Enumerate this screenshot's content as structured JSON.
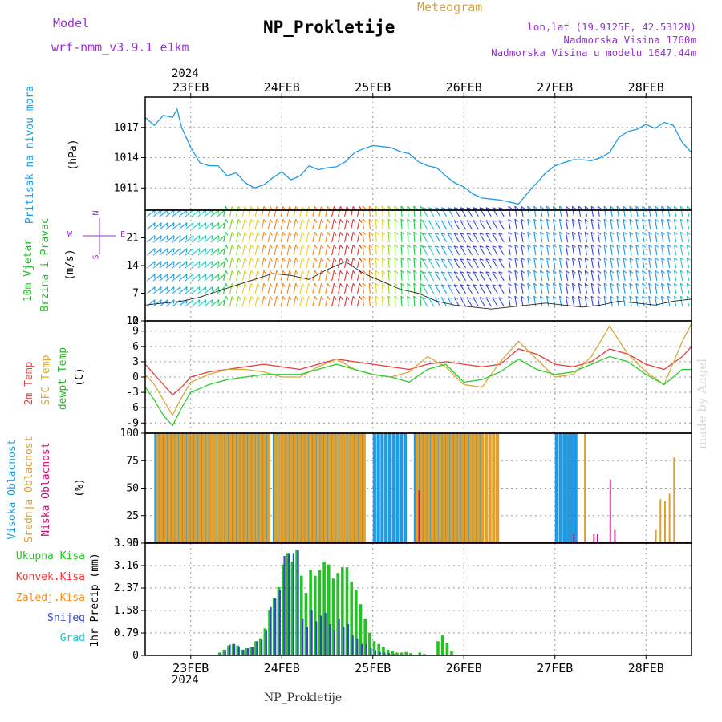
{
  "header": {
    "model_label": "Model",
    "model_name": "wrf-nmm_v3.9.1 e1km",
    "meteogram_label": "Meteogram",
    "title": "NP_Prokletije",
    "lonlat": "lon,lat (19.9125E, 42.5312N)",
    "elevation": "Nadmorska Visina 1760m",
    "model_elevation": "Nadmorska Visina u modelu 1647.44m",
    "watermark": "made by Angel",
    "station_footer": "NP_Prokletije"
  },
  "colors": {
    "pressure": "#1e9be6",
    "temp2m": "#e8403c",
    "sfc": "#d8a93a",
    "dewpt": "#2ecc2e",
    "high_cloud": "#1e9be6",
    "mid_cloud": "#e0a030",
    "low_cloud": "#c8137a",
    "precip_total": "#22c322",
    "precip_conv": "#ff3333",
    "precip_frozen": "#ff8c1a",
    "snow": "#3344cc",
    "graupel": "#20c0c0",
    "wind_title": "#22bb22",
    "legend_purple": "#9b30d9"
  },
  "chart_data": [
    {
      "type": "line",
      "title": "Pritisak na nivou mora",
      "ylabel": "(hPa)",
      "x_top_year": "2024",
      "x_tick_labels": [
        "23FEB",
        "24FEB",
        "25FEB",
        "26FEB",
        "27FEB",
        "28FEB"
      ],
      "x_range_days": [
        22.5,
        28.5
      ],
      "ylim": [
        1008.8,
        1020.0
      ],
      "yticks": [
        1011,
        1014,
        1017
      ],
      "grid": true,
      "series": [
        {
          "name": "Pritisak na nivou mora",
          "x": [
            22.5,
            22.6,
            22.7,
            22.8,
            22.85,
            22.9,
            23.0,
            23.1,
            23.2,
            23.3,
            23.4,
            23.5,
            23.6,
            23.7,
            23.8,
            23.9,
            24.0,
            24.1,
            24.2,
            24.3,
            24.4,
            24.5,
            24.6,
            24.7,
            24.8,
            24.9,
            25.0,
            25.1,
            25.2,
            25.3,
            25.4,
            25.5,
            25.6,
            25.7,
            25.8,
            25.9,
            26.0,
            26.1,
            26.2,
            26.3,
            26.4,
            26.5,
            26.6,
            26.7,
            26.8,
            26.9,
            27.0,
            27.1,
            27.2,
            27.3,
            27.4,
            27.5,
            27.6,
            27.7,
            27.8,
            27.9,
            28.0,
            28.1,
            28.2,
            28.3,
            28.4,
            28.5
          ],
          "values": [
            1018.0,
            1017.2,
            1018.2,
            1018.0,
            1018.8,
            1017.0,
            1015.0,
            1013.5,
            1013.2,
            1013.2,
            1012.2,
            1012.5,
            1011.5,
            1011.0,
            1011.3,
            1012.0,
            1012.6,
            1011.8,
            1012.2,
            1013.2,
            1012.8,
            1013.0,
            1013.1,
            1013.6,
            1014.5,
            1014.9,
            1015.2,
            1015.1,
            1015.0,
            1014.6,
            1014.4,
            1013.6,
            1013.2,
            1013.0,
            1012.2,
            1011.5,
            1011.1,
            1010.4,
            1010.0,
            1009.9,
            1009.8,
            1009.6,
            1009.4,
            1010.5,
            1011.5,
            1012.5,
            1013.2,
            1013.5,
            1013.8,
            1013.8,
            1013.7,
            1014.0,
            1014.5,
            1016.0,
            1016.6,
            1016.8,
            1017.3,
            1016.9,
            1017.5,
            1017.2,
            1015.5,
            1014.5
          ]
        }
      ]
    },
    {
      "type": "line",
      "title": "10m Vjetar Brzina i Pravac",
      "ylabel": "(m/s)",
      "compass": {
        "north": "N",
        "west": "W",
        "east": "E",
        "south": "S"
      },
      "ylim": [
        0,
        28
      ],
      "yticks": [
        0,
        7,
        14,
        21
      ],
      "yticks_extra": [
        "12"
      ],
      "grid": true,
      "series": [
        {
          "name": "brzina",
          "x": [
            22.5,
            22.7,
            22.9,
            23.1,
            23.3,
            23.5,
            23.7,
            23.9,
            24.1,
            24.3,
            24.5,
            24.7,
            24.9,
            25.1,
            25.3,
            25.5,
            25.7,
            25.9,
            26.1,
            26.3,
            26.5,
            26.7,
            26.9,
            27.1,
            27.3,
            27.5,
            27.7,
            27.9,
            28.1,
            28.3,
            28.5
          ],
          "values": [
            4.0,
            4.5,
            5.0,
            6.0,
            7.5,
            9.0,
            10.5,
            12.0,
            11.5,
            10.5,
            13.0,
            15.0,
            12.0,
            10.0,
            8.0,
            7.0,
            5.0,
            4.0,
            3.5,
            3.0,
            3.5,
            4.0,
            4.5,
            4.0,
            3.5,
            4.0,
            5.0,
            4.5,
            4.0,
            5.0,
            5.5
          ]
        }
      ]
    },
    {
      "type": "line",
      "title": "2m Temp / SFC Temp / dewpt Temp",
      "ylabel": "(C)",
      "ylim": [
        -11,
        11
      ],
      "yticks": [
        -9,
        -6,
        -3,
        0,
        3,
        6,
        9
      ],
      "grid": true,
      "series": [
        {
          "name": "2m Temp",
          "x": [
            22.5,
            22.6,
            22.7,
            22.8,
            22.9,
            23.0,
            23.2,
            23.4,
            23.6,
            23.8,
            24.0,
            24.2,
            24.4,
            24.6,
            24.8,
            25.0,
            25.2,
            25.4,
            25.6,
            25.8,
            26.0,
            26.2,
            26.4,
            26.6,
            26.8,
            27.0,
            27.2,
            27.4,
            27.6,
            27.8,
            28.0,
            28.2,
            28.4,
            28.5
          ],
          "values": [
            2.5,
            0.5,
            -1.5,
            -3.5,
            -2.0,
            0.0,
            1.0,
            1.5,
            2.0,
            2.5,
            2.0,
            1.5,
            2.5,
            3.5,
            3.0,
            2.5,
            2.0,
            1.5,
            2.5,
            3.0,
            2.5,
            2.0,
            2.5,
            5.5,
            4.5,
            2.5,
            2.0,
            3.0,
            5.5,
            4.5,
            2.5,
            1.5,
            4.0,
            6.0
          ]
        },
        {
          "name": "SFC Temp",
          "x": [
            22.5,
            22.6,
            22.7,
            22.8,
            22.9,
            23.0,
            23.2,
            23.4,
            23.6,
            23.8,
            24.0,
            24.2,
            24.4,
            24.6,
            24.8,
            25.0,
            25.2,
            25.4,
            25.6,
            25.8,
            26.0,
            26.2,
            26.4,
            26.6,
            26.8,
            27.0,
            27.2,
            27.4,
            27.6,
            27.8,
            28.0,
            28.2,
            28.4,
            28.5
          ],
          "values": [
            0.5,
            -1.5,
            -4.5,
            -7.5,
            -4.0,
            -1.0,
            0.5,
            1.5,
            1.5,
            1.0,
            0.0,
            0.0,
            2.0,
            3.5,
            1.5,
            0.5,
            0.0,
            1.0,
            4.0,
            2.0,
            -1.5,
            -2.0,
            3.0,
            7.0,
            3.5,
            0.0,
            0.5,
            4.0,
            10.0,
            4.5,
            1.0,
            -1.5,
            7.0,
            10.5
          ]
        },
        {
          "name": "dewpt Temp",
          "x": [
            22.5,
            22.6,
            22.7,
            22.8,
            22.9,
            23.0,
            23.2,
            23.4,
            23.6,
            23.8,
            24.0,
            24.2,
            24.4,
            24.6,
            24.8,
            25.0,
            25.2,
            25.4,
            25.6,
            25.8,
            26.0,
            26.2,
            26.4,
            26.6,
            26.8,
            27.0,
            27.2,
            27.4,
            27.6,
            27.8,
            28.0,
            28.2,
            28.4,
            28.5
          ],
          "values": [
            -2.0,
            -4.5,
            -7.5,
            -9.5,
            -6.0,
            -3.0,
            -1.5,
            -0.5,
            0.0,
            0.5,
            0.5,
            0.5,
            1.5,
            2.5,
            1.5,
            0.5,
            0.0,
            -1.0,
            1.5,
            2.5,
            -1.0,
            -0.5,
            1.0,
            3.5,
            1.5,
            0.5,
            1.0,
            2.5,
            4.0,
            3.0,
            0.5,
            -1.5,
            1.5,
            1.5
          ]
        }
      ]
    },
    {
      "type": "bar",
      "title": "Visoka Oblacnost / Srednja Oblacnost / Niska Oblacnost",
      "ylabel": "(%)",
      "ylim": [
        0,
        100
      ],
      "yticks": [
        0,
        25,
        50,
        75,
        100
      ],
      "grid": true,
      "series": [
        {
          "name": "Visoka Oblacnost",
          "x_ranges": [
            [
              22.6,
              23.85
            ],
            [
              23.9,
              24.9
            ],
            [
              25.0,
              25.35
            ],
            [
              25.45,
              26.2
            ],
            [
              27.0,
              27.22
            ]
          ],
          "values": 100
        },
        {
          "name": "Srednja Oblacnost",
          "x_ranges": [
            [
              22.6,
              23.85
            ],
            [
              23.9,
              24.9
            ],
            [
              25.45,
              26.35
            ]
          ],
          "values": 100,
          "extra": [
            {
              "x": 26.35,
              "value": 60
            },
            {
              "x": 27.32,
              "value": 100
            },
            {
              "x": 28.1,
              "value": 12
            },
            {
              "x": 28.15,
              "value": 40
            },
            {
              "x": 28.2,
              "value": 38
            },
            {
              "x": 28.25,
              "value": 45
            },
            {
              "x": 28.3,
              "value": 78
            }
          ]
        },
        {
          "name": "Niska Oblacnost",
          "bars": [
            {
              "x": 25.5,
              "value": 48
            },
            {
              "x": 27.2,
              "value": 8
            },
            {
              "x": 27.42,
              "value": 8
            },
            {
              "x": 27.46,
              "value": 8
            },
            {
              "x": 27.6,
              "value": 58
            },
            {
              "x": 27.65,
              "value": 12
            }
          ]
        }
      ]
    },
    {
      "type": "bar",
      "title": "Ukupna Kisa / Konvek.Kisa / Zaledj.Kisa / Snijeg / Grad",
      "ylabel": "1hr Precip (mm)",
      "ylim": [
        0,
        3.95
      ],
      "yticks": [
        0,
        0.79,
        1.58,
        2.37,
        3.16,
        3.95
      ],
      "x_bottom_year": "2024",
      "grid": true,
      "series": [
        {
          "name": "Ukupna Kisa",
          "x": [
            23.3,
            23.35,
            23.4,
            23.45,
            23.5,
            23.55,
            23.6,
            23.65,
            23.7,
            23.75,
            23.8,
            23.85,
            23.9,
            23.95,
            24.0,
            24.05,
            24.1,
            24.15,
            24.2,
            24.25,
            24.3,
            24.35,
            24.4,
            24.45,
            24.5,
            24.55,
            24.6,
            24.65,
            24.7,
            24.75,
            24.8,
            24.85,
            24.9,
            24.95,
            25.0,
            25.05,
            25.1,
            25.15,
            25.2,
            25.25,
            25.3,
            25.35,
            25.4,
            25.5,
            25.55,
            25.7,
            25.75,
            25.8,
            25.85,
            28.0
          ],
          "values": [
            0.1,
            0.2,
            0.35,
            0.4,
            0.35,
            0.2,
            0.25,
            0.3,
            0.5,
            0.6,
            0.95,
            1.6,
            2.0,
            2.4,
            3.2,
            3.6,
            3.3,
            3.7,
            2.8,
            2.2,
            3.0,
            2.8,
            3.0,
            3.3,
            3.2,
            2.7,
            2.9,
            3.1,
            3.1,
            2.6,
            2.3,
            1.8,
            1.3,
            0.8,
            0.5,
            0.4,
            0.3,
            0.2,
            0.15,
            0.1,
            0.1,
            0.12,
            0.08,
            0.1,
            0.05,
            0.5,
            0.7,
            0.45,
            0.15,
            0.03
          ]
        },
        {
          "name": "Snijeg",
          "x": [
            23.3,
            23.35,
            23.4,
            23.45,
            23.5,
            23.55,
            23.6,
            23.65,
            23.7,
            23.75,
            23.8,
            23.85,
            23.9,
            23.95,
            24.0,
            24.05,
            24.1,
            24.15,
            24.2,
            24.25,
            24.3,
            24.35,
            24.4,
            24.45,
            24.5,
            24.55,
            24.6,
            24.65,
            24.7,
            24.75,
            24.8,
            24.85,
            24.9,
            24.95,
            25.0,
            25.05,
            25.1,
            25.15,
            25.2
          ],
          "values": [
            0.1,
            0.2,
            0.38,
            0.4,
            0.3,
            0.2,
            0.25,
            0.3,
            0.5,
            0.55,
            0.9,
            1.7,
            2.0,
            2.3,
            3.5,
            3.6,
            3.6,
            3.7,
            1.3,
            1.0,
            1.6,
            1.2,
            1.4,
            1.5,
            1.1,
            0.9,
            1.3,
            1.0,
            1.1,
            0.7,
            0.6,
            0.4,
            0.4,
            0.25,
            0.18,
            0.12,
            0.1,
            0.08,
            0.05
          ]
        }
      ]
    }
  ],
  "left_labels": {
    "pressure": "Pritisak na nivou mora",
    "wind_line1": "10m Vjetar",
    "wind_line2": "Brzina i Pravac",
    "temp1": "2m Temp",
    "temp2": "SFC Temp",
    "temp3": "dewpt Temp",
    "cloud1": "Visoka Oblacnost",
    "cloud2": "Srednja Oblacnost",
    "cloud3": "Niska Oblacnost",
    "precip_labels": [
      "Ukupna Kisa",
      "Konvek.Kisa",
      "Zaledj.Kisa",
      "Snijeg",
      "Grad"
    ]
  }
}
